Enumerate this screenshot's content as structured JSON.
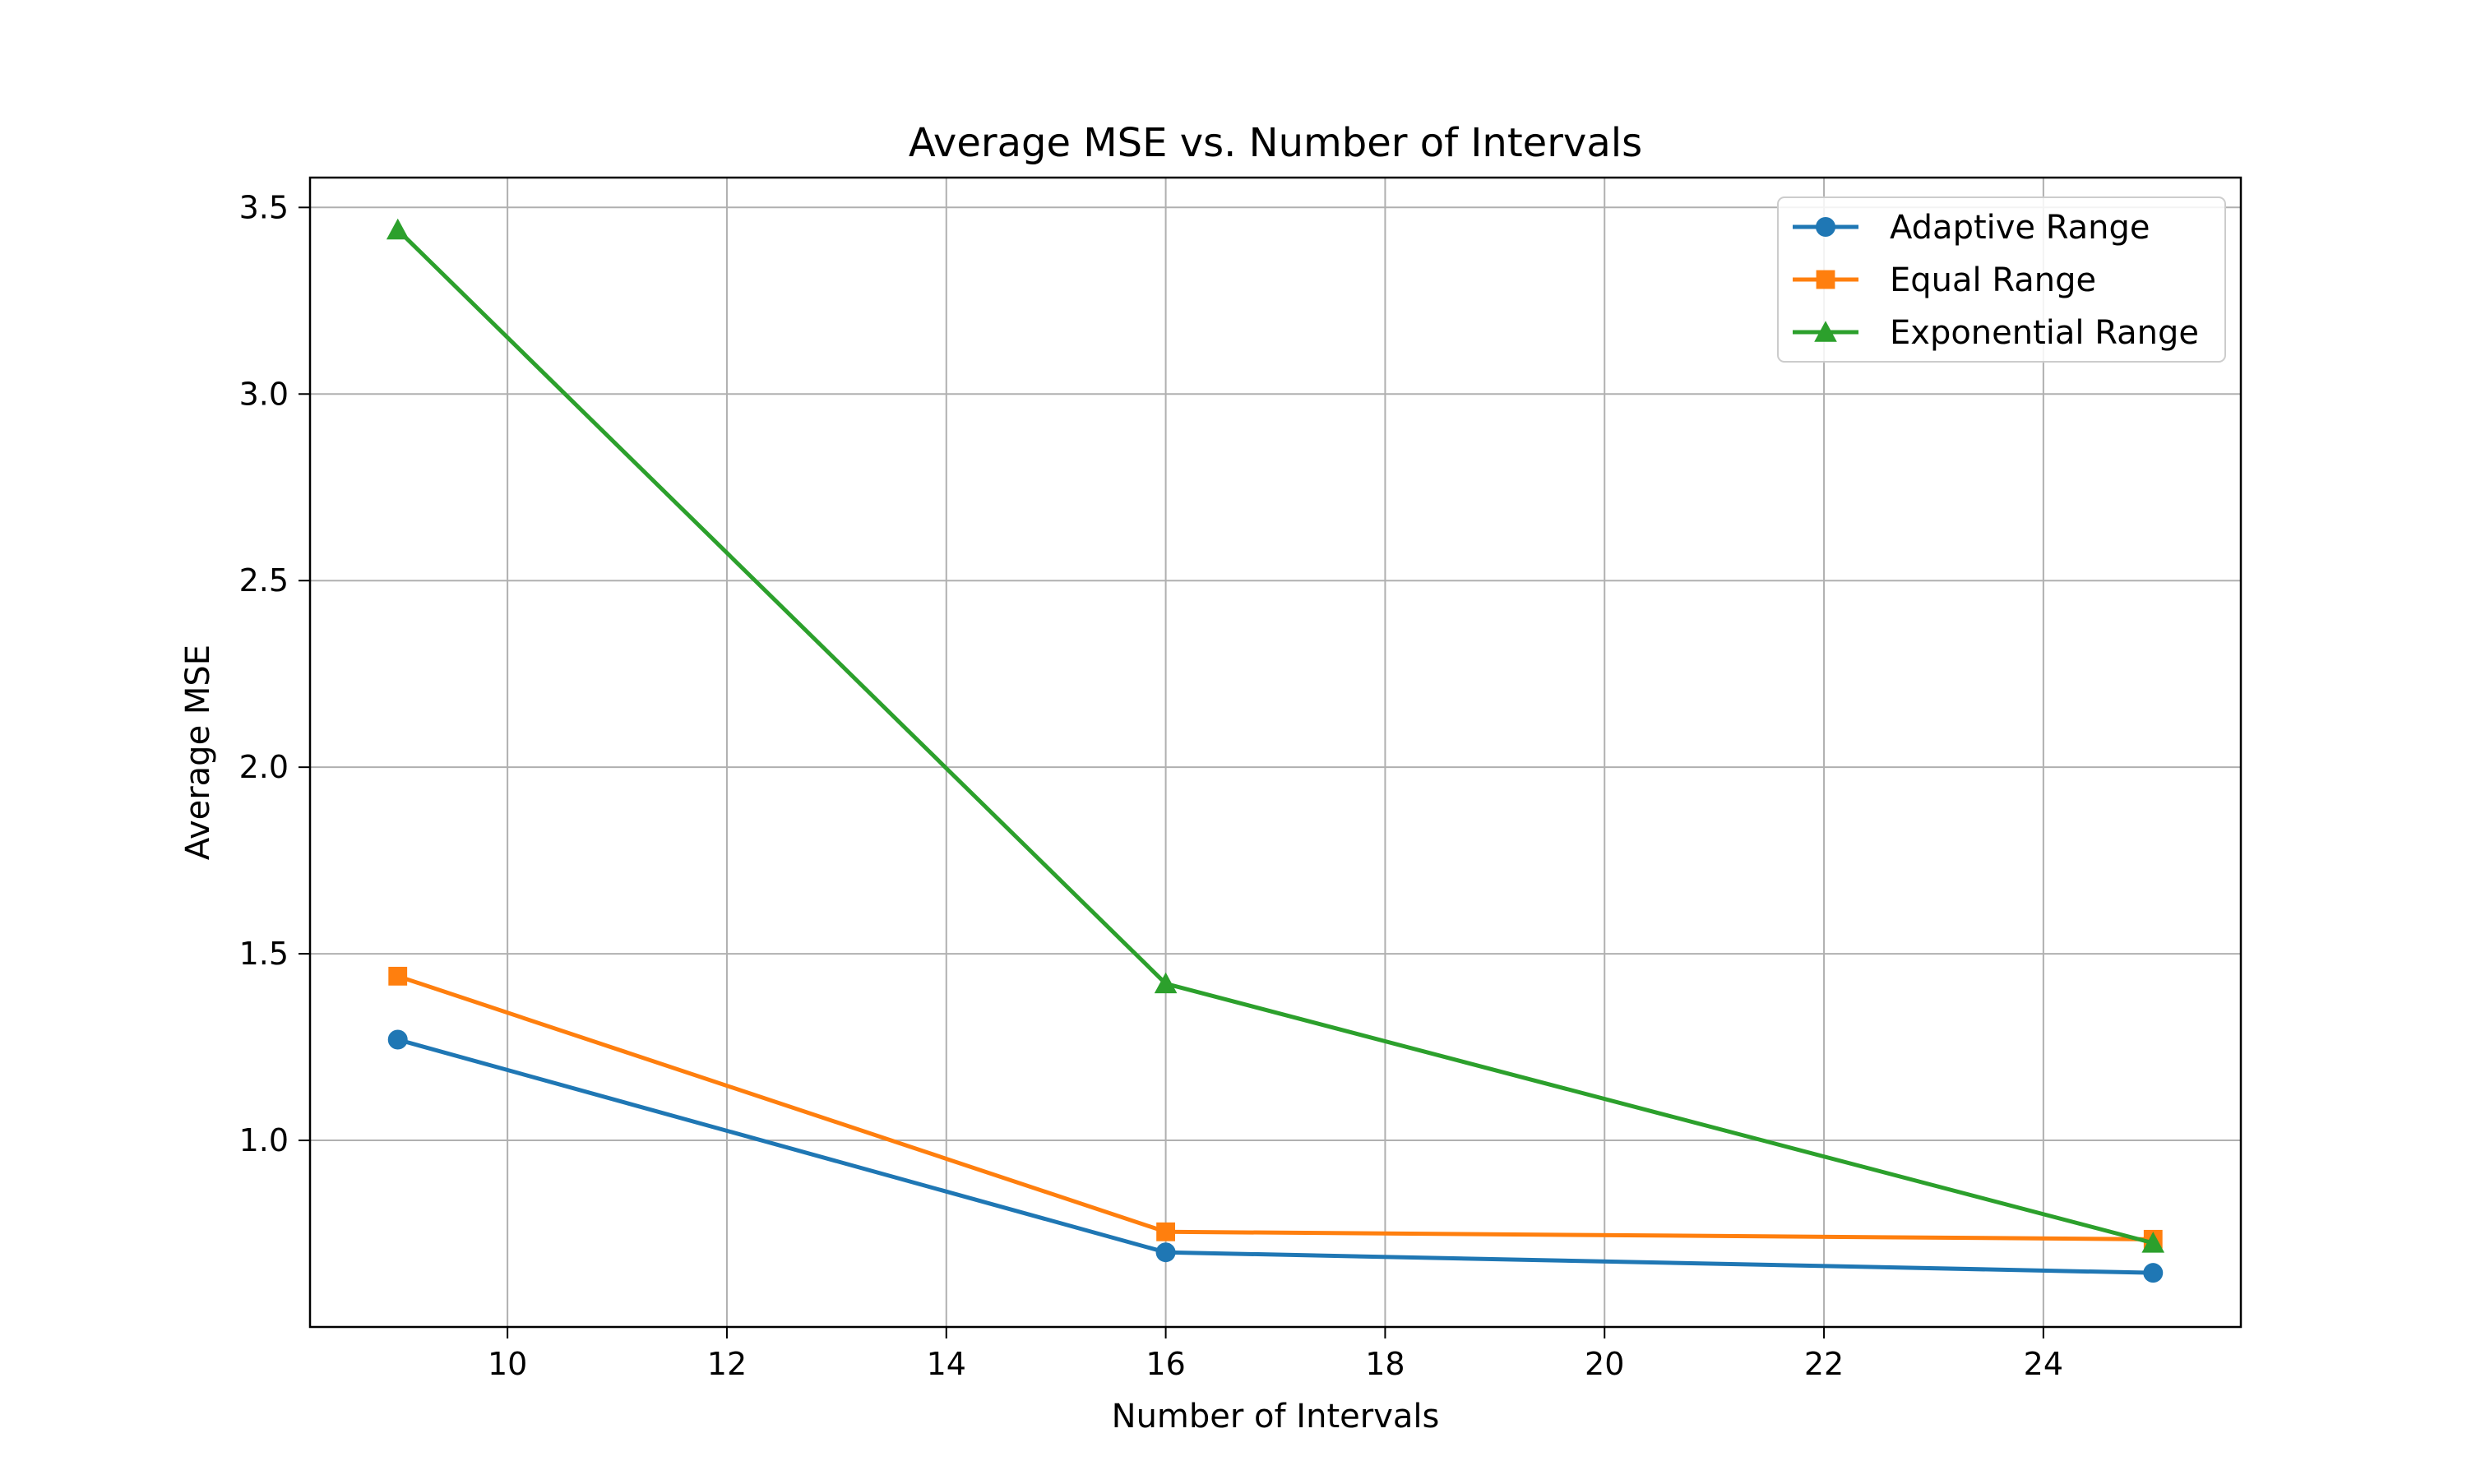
{
  "chart_data": {
    "type": "line",
    "title": "Average MSE vs. Number of Intervals",
    "xlabel": "Number of Intervals",
    "ylabel": "Average MSE",
    "x": [
      9,
      16,
      25
    ],
    "xlim": [
      8.2,
      25.8
    ],
    "ylim": [
      0.5,
      3.58
    ],
    "xticks": [
      10,
      12,
      14,
      16,
      18,
      20,
      22,
      24
    ],
    "yticks": [
      1.0,
      1.5,
      2.0,
      2.5,
      3.0,
      3.5
    ],
    "grid": true,
    "legend_position": "top-right",
    "series": [
      {
        "name": "Adaptive Range",
        "values": [
          1.27,
          0.7,
          0.645
        ],
        "color": "#1f77b4",
        "marker": "circle"
      },
      {
        "name": "Equal Range",
        "values": [
          1.44,
          0.755,
          0.735
        ],
        "color": "#ff7f0e",
        "marker": "square"
      },
      {
        "name": "Exponential Range",
        "values": [
          3.44,
          1.42,
          0.725
        ],
        "color": "#2ca02c",
        "marker": "triangle"
      }
    ]
  }
}
